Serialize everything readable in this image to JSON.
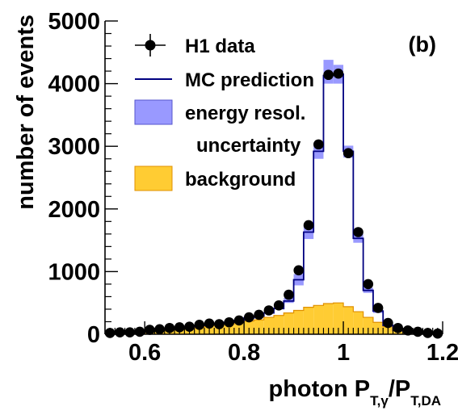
{
  "chart_data": {
    "type": "histogram",
    "panel_label": "(b)",
    "xlabel": {
      "prefix": "photon P",
      "sub1": "T,γ",
      "slash": "/P",
      "sub2": "T,DA"
    },
    "ylabel": "number of events",
    "xlim": [
      0.52,
      1.2
    ],
    "ylim": [
      0,
      5000
    ],
    "x_ticks": [
      {
        "value": 0.6,
        "label": "0.6"
      },
      {
        "value": 0.8,
        "label": "0.8"
      },
      {
        "value": 1.0,
        "label": "1"
      },
      {
        "value": 1.2,
        "label": "1.2"
      }
    ],
    "y_ticks": [
      {
        "value": 0,
        "label": "0"
      },
      {
        "value": 1000,
        "label": "1000"
      },
      {
        "value": 2000,
        "label": "2000"
      },
      {
        "value": 3000,
        "label": "3000"
      },
      {
        "value": 4000,
        "label": "4000"
      },
      {
        "value": 5000,
        "label": "5000"
      }
    ],
    "legend": {
      "placement": "top-left",
      "entries": [
        {
          "key": "data",
          "label": "H1 data"
        },
        {
          "key": "mc",
          "label": "MC prediction"
        },
        {
          "key": "band",
          "label": "energy resol.",
          "label2": "uncertainty"
        },
        {
          "key": "bg",
          "label": "background"
        }
      ]
    },
    "colors": {
      "mc": "#000080",
      "band_fill": "#9999ff",
      "band_edge": "#5555cc",
      "bg_fill": "#ffcc33",
      "bg_edge": "#e09000",
      "data": "#000000"
    },
    "bin_edges": [
      0.52,
      0.54,
      0.56,
      0.58,
      0.6,
      0.62,
      0.64,
      0.66,
      0.68,
      0.7,
      0.72,
      0.74,
      0.76,
      0.78,
      0.8,
      0.82,
      0.84,
      0.86,
      0.88,
      0.9,
      0.92,
      0.94,
      0.96,
      0.98,
      1.0,
      1.02,
      1.04,
      1.06,
      1.08,
      1.1,
      1.12,
      1.14,
      1.16,
      1.18,
      1.2
    ],
    "series": [
      {
        "name": "H1 data",
        "kind": "points",
        "x": [
          0.53,
          0.55,
          0.57,
          0.59,
          0.61,
          0.63,
          0.65,
          0.67,
          0.69,
          0.71,
          0.73,
          0.75,
          0.77,
          0.79,
          0.81,
          0.83,
          0.85,
          0.87,
          0.89,
          0.91,
          0.93,
          0.95,
          0.97,
          0.99,
          1.01,
          1.03,
          1.05,
          1.07,
          1.09,
          1.11,
          1.13,
          1.15,
          1.17,
          1.19
        ],
        "values": [
          20,
          30,
          30,
          40,
          70,
          80,
          100,
          110,
          120,
          150,
          170,
          160,
          190,
          220,
          270,
          310,
          380,
          460,
          630,
          1020,
          1740,
          3030,
          4140,
          4160,
          2890,
          1630,
          800,
          420,
          180,
          100,
          60,
          40,
          20,
          10
        ]
      },
      {
        "name": "MC prediction",
        "kind": "step",
        "values": [
          10,
          20,
          20,
          30,
          50,
          70,
          80,
          100,
          120,
          140,
          160,
          170,
          190,
          220,
          260,
          290,
          340,
          410,
          530,
          870,
          1630,
          2920,
          4130,
          4150,
          2920,
          1530,
          700,
          370,
          140,
          60,
          40,
          20,
          10,
          10
        ]
      },
      {
        "name": "energy resol. uncertainty",
        "kind": "band",
        "low": [
          10,
          20,
          20,
          30,
          50,
          70,
          80,
          100,
          120,
          140,
          160,
          170,
          190,
          220,
          260,
          290,
          340,
          400,
          500,
          780,
          1520,
          2800,
          4000,
          4000,
          2820,
          1460,
          660,
          340,
          120,
          60,
          40,
          20,
          10,
          10
        ],
        "high": [
          10,
          20,
          20,
          30,
          50,
          70,
          80,
          100,
          120,
          140,
          160,
          170,
          190,
          220,
          260,
          290,
          350,
          430,
          580,
          960,
          1750,
          3050,
          4380,
          4300,
          3010,
          1600,
          740,
          400,
          160,
          70,
          40,
          20,
          10,
          10
        ]
      },
      {
        "name": "background",
        "kind": "filled-step",
        "values": [
          10,
          20,
          20,
          30,
          50,
          60,
          70,
          80,
          100,
          110,
          140,
          150,
          160,
          190,
          210,
          230,
          270,
          300,
          340,
          380,
          430,
          460,
          490,
          500,
          440,
          360,
          270,
          190,
          120,
          70,
          40,
          20,
          10,
          10
        ]
      }
    ]
  }
}
